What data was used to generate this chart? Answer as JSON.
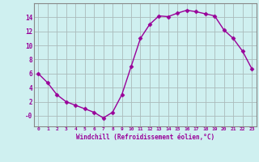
{
  "x": [
    0,
    1,
    2,
    3,
    4,
    5,
    6,
    7,
    8,
    9,
    10,
    11,
    12,
    13,
    14,
    15,
    16,
    17,
    18,
    19,
    20,
    21,
    22,
    23
  ],
  "y": [
    6,
    4.7,
    3,
    2,
    1.5,
    1,
    0.5,
    -0.3,
    0.5,
    3,
    7,
    11,
    13,
    14.2,
    14.1,
    14.6,
    15,
    14.8,
    14.5,
    14.2,
    12.2,
    11,
    9.2,
    6.7
  ],
  "line_color": "#990099",
  "marker": "D",
  "marker_size": 2.5,
  "bg_color": "#cff0f0",
  "grid_color": "#aabbbb",
  "xlabel": "Windchill (Refroidissement éolien,°C)",
  "xlabel_color": "#990099",
  "tick_color": "#990099",
  "xlim": [
    -0.5,
    23.5
  ],
  "ylim": [
    -1.5,
    16
  ],
  "yticks": [
    0,
    2,
    4,
    6,
    8,
    10,
    12,
    14
  ],
  "ytick_labels": [
    "-0",
    "2",
    "4",
    "6",
    "8",
    "10",
    "12",
    "14"
  ],
  "xticks": [
    0,
    1,
    2,
    3,
    4,
    5,
    6,
    7,
    8,
    9,
    10,
    11,
    12,
    13,
    14,
    15,
    16,
    17,
    18,
    19,
    20,
    21,
    22,
    23
  ]
}
